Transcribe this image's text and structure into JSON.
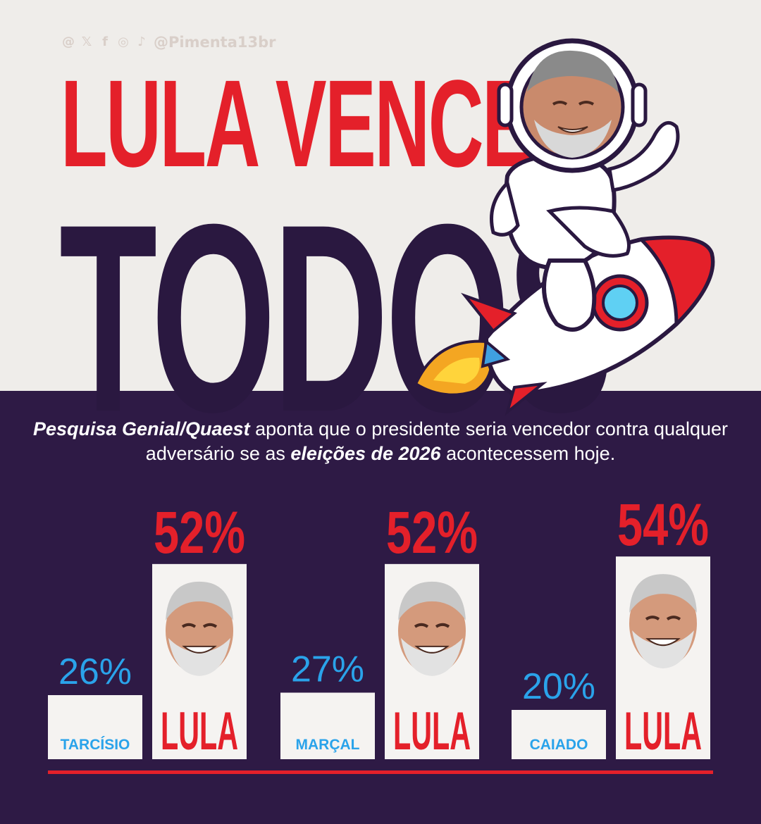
{
  "header": {
    "social_icons": [
      "threads-icon",
      "x-icon",
      "facebook-icon",
      "instagram-icon",
      "tiktok-icon"
    ],
    "handle": "@Pimenta13br",
    "title_line1": "LULA VENCE",
    "title_line2": "TODOS"
  },
  "description": {
    "part1": "Pesquisa Genial/Quaest",
    "part2": " aponta que o presidente seria vencedor contra qualquer adversário se as ",
    "part3": "eleições de 2026",
    "part4": " acontecessem hoje."
  },
  "colors": {
    "background_dark": "#2e1a45",
    "background_light": "#efedea",
    "accent_red": "#e4202a",
    "opponent_blue": "#2aa3ea",
    "title_dark": "#2a1840"
  },
  "chart_data": {
    "type": "bar",
    "ylim": [
      0,
      60
    ],
    "grid": false,
    "groups": [
      {
        "opponent": "TARCÍSIO",
        "opponent_value": 26,
        "opponent_label": "26%",
        "lula": "LULA",
        "lula_value": 52,
        "lula_label": "52%"
      },
      {
        "opponent": "MARÇAL",
        "opponent_value": 27,
        "opponent_label": "27%",
        "lula": "LULA",
        "lula_value": 52,
        "lula_label": "52%"
      },
      {
        "opponent": "CAIADO",
        "opponent_value": 20,
        "opponent_label": "20%",
        "lula": "LULA",
        "lula_value": 54,
        "lula_label": "54%"
      }
    ]
  }
}
